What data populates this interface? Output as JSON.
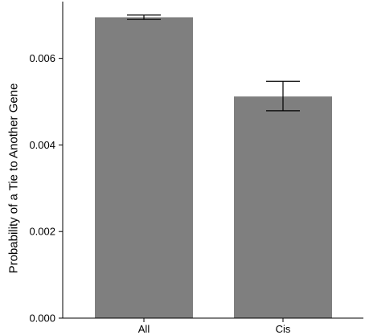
{
  "chart_data": {
    "type": "bar",
    "title": "",
    "xlabel": "",
    "ylabel": "Probability of a Tie to Another Gene",
    "categories": [
      "All",
      "Cis"
    ],
    "values": [
      0.00695,
      0.00512
    ],
    "error_bars": [
      {
        "low": 0.0069,
        "high": 0.007
      },
      {
        "low": 0.00479,
        "high": 0.00547
      }
    ],
    "ylim": [
      0,
      0.0072
    ],
    "yticks": [
      0,
      0.002,
      0.004,
      0.006
    ],
    "ytick_labels": [
      "0.000",
      "0.002",
      "0.004",
      "0.006"
    ],
    "grid": false,
    "bar_color": "#7f7f7f",
    "axis_color": "#000000"
  }
}
